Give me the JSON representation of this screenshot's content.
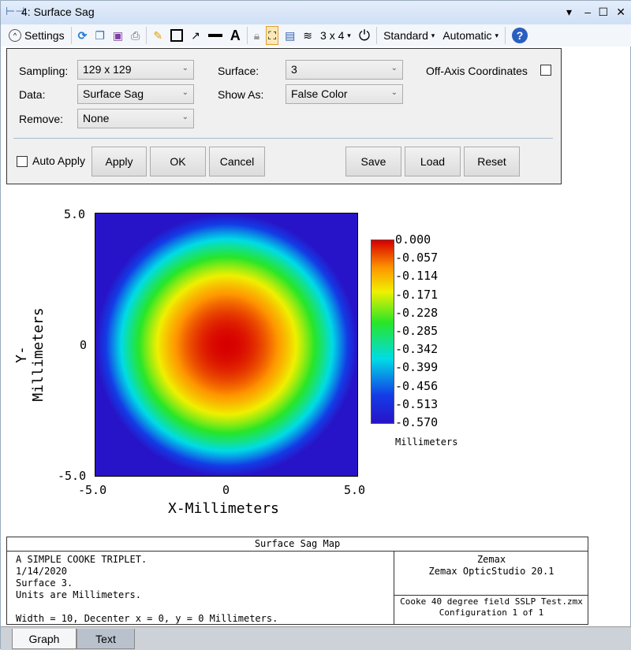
{
  "window": {
    "title": "4: Surface Sag",
    "controls": [
      "▾",
      "–",
      "☐",
      "✕"
    ]
  },
  "toolbar": {
    "settings": "Settings",
    "layout": "3 x 4",
    "standard": "Standard",
    "automatic": "Automatic"
  },
  "settings": {
    "sampling_label": "Sampling:",
    "sampling": "129 x 129",
    "data_label": "Data:",
    "data": "Surface Sag",
    "remove_label": "Remove:",
    "remove": "None",
    "surface_label": "Surface:",
    "surface": "3",
    "showas_label": "Show As:",
    "showas": "False Color",
    "offaxis_label": "Off-Axis Coordinates",
    "offaxis_checked": false,
    "autoapply_label": "Auto Apply",
    "autoapply_checked": false,
    "buttons": {
      "apply": "Apply",
      "ok": "OK",
      "cancel": "Cancel",
      "save": "Save",
      "load": "Load",
      "reset": "Reset"
    }
  },
  "chart_data": {
    "type": "heatmap",
    "xlabel": "X-Millimeters",
    "ylabel": "Y-Millimeters",
    "xlim": [
      -5,
      5
    ],
    "ylim": [
      -5,
      5
    ],
    "xticks": [
      "-5.0",
      "0",
      "5.0"
    ],
    "yticks": [
      "5.0",
      "0",
      "-5.0"
    ],
    "colorbar": {
      "min": -0.57,
      "max": 0.0,
      "ticks": [
        "0.000",
        "-0.057",
        "-0.114",
        "-0.171",
        "-0.228",
        "-0.285",
        "-0.342",
        "-0.399",
        "-0.456",
        "-0.513",
        "-0.570"
      ],
      "unit": "Millimeters",
      "colormap": "false color (red high, blue low)"
    },
    "description_of_field": "radially symmetric sag, 0.000 at center decreasing to -0.570 at radius 5"
  },
  "info": {
    "title": "Surface Sag Map",
    "lines": [
      "A SIMPLE COOKE TRIPLET.",
      "1/14/2020",
      "Surface 3.",
      "Units are Millimeters.",
      "",
      "Width = 10, Decenter x = 0, y = 0 Millimeters."
    ],
    "company": "Zemax",
    "product": "Zemax OpticStudio 20.1",
    "file": "Cooke 40 degree field SSLP Test.zmx",
    "config": "Configuration 1 of 1"
  },
  "tabs": [
    "Graph",
    "Text"
  ]
}
